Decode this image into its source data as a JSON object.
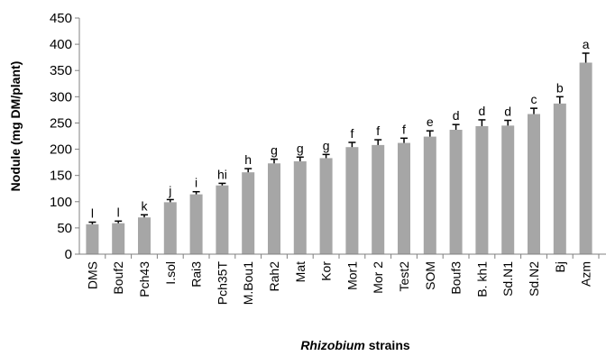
{
  "chart_data": {
    "type": "bar",
    "ylabel": "Nodule (mg DM/plant)",
    "xlabel_italic": "Rhizobium",
    "xlabel_rest": " strains",
    "ylim": [
      0,
      450
    ],
    "yticks": [
      0,
      50,
      100,
      150,
      200,
      250,
      300,
      350,
      400,
      450
    ],
    "grid": false,
    "bar_color": "#a6a6a6",
    "categories": [
      "DMS",
      "Bouf2",
      "Pch43",
      "I.sol",
      "Rai3",
      "Pch35T",
      "M.Bou1",
      "Rah2",
      "Mat",
      "Kor",
      "Mor1",
      "Mor 2",
      "Test2",
      "SOM",
      "Bouf3",
      "B. kh1",
      "Sd.N1",
      "Sd.N2",
      "Bj",
      "Azm"
    ],
    "values": [
      57,
      59,
      70,
      99,
      114,
      131,
      156,
      173,
      177,
      183,
      204,
      208,
      212,
      224,
      237,
      244,
      245,
      267,
      287,
      365
    ],
    "errors": [
      4,
      4,
      5,
      5,
      5,
      4,
      7,
      8,
      8,
      7,
      9,
      10,
      9,
      11,
      10,
      12,
      10,
      11,
      13,
      18
    ],
    "significance": [
      "l",
      "l",
      "k",
      "j",
      "i",
      "hi",
      "h",
      "g",
      "g",
      "g",
      "f",
      "f",
      "f",
      "e",
      "d",
      "d",
      "d",
      "c",
      "b",
      "a"
    ]
  }
}
